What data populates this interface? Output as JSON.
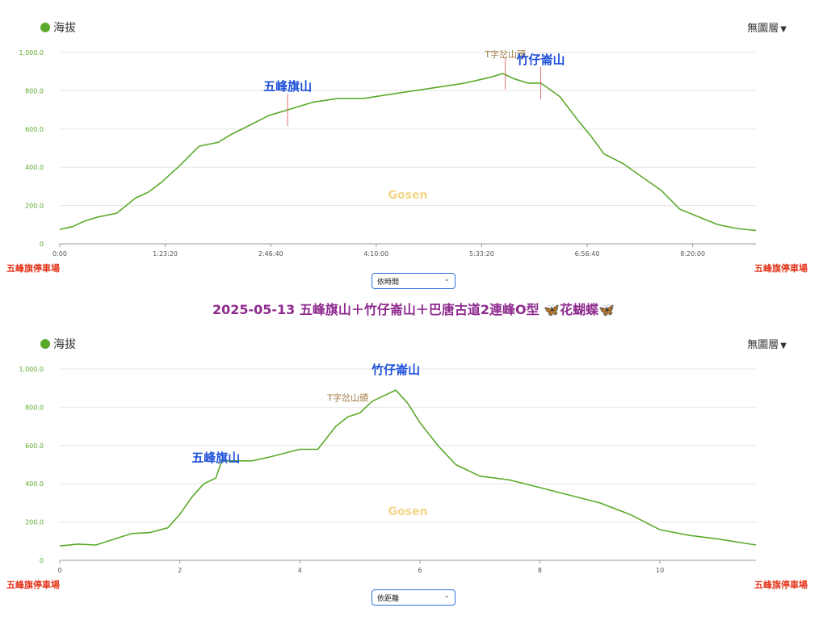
{
  "title": "2025-05-13 五峰旗山＋竹仔崙山＋巴唐古道2連峰O型 🦋花蝴蝶🦋",
  "colors": {
    "line": "#5aaa2a",
    "tick": "#5aaa2a",
    "peak": "#1e4fd8",
    "label_brown": "#a07840",
    "endpoint": "#e4341b",
    "watermark": "#f4d58a",
    "grid": "#e6e6e6",
    "axis": "#999999",
    "title": "#8e2a8e",
    "marker": "#e07070"
  },
  "panels": [
    {
      "legend": {
        "label": "海拔",
        "color": "#5aaa2a",
        "icon": "green-dot"
      },
      "layer_button": "無圖層",
      "start_label": "五峰旗停車場",
      "end_label": "五峰旗停車場",
      "select_value": "依時間",
      "watermark": "Gosen"
    },
    {
      "legend": {
        "label": "海拔",
        "color": "#5aaa2a",
        "icon": "green-dot"
      },
      "layer_button": "無圖層",
      "start_label": "五峰旗停車場",
      "end_label": "五峰旗停車場",
      "select_value": "依距離",
      "watermark": "Gosen"
    }
  ],
  "chart_data": [
    {
      "type": "area",
      "x_type": "time",
      "xlim": [
        "0:00",
        "9:10:00"
      ],
      "ylim": [
        0,
        1000
      ],
      "grid": true,
      "y_ticks": [
        "0",
        "200.0",
        "400.0",
        "600.0",
        "800.0",
        "1,000.0"
      ],
      "x_ticks": [
        "0:00",
        "1:23:20",
        "2:46:40",
        "4:10:00",
        "5:33:20",
        "6:56:40",
        "8:20:00"
      ],
      "series": [
        {
          "x": [
            "0:00",
            "0:10:00",
            "0:20:00",
            "0:30:00",
            "0:45:00",
            "1:00:00",
            "1:10:00",
            "1:20:00",
            "1:35:00",
            "1:50:00",
            "2:05:00",
            "2:15:00",
            "2:30:00",
            "2:45:00",
            "3:00:00",
            "3:20:00",
            "3:40:00",
            "4:00:00",
            "4:20:00",
            "4:40:00",
            "5:00:00",
            "5:20:00",
            "5:40:00",
            "5:50:00",
            "6:00:00",
            "6:10:00",
            "6:20:00",
            "6:35:00",
            "6:50:00",
            "7:00:00",
            "7:10:00",
            "7:25:00",
            "7:40:00",
            "7:55:00",
            "8:10:00",
            "8:25:00",
            "8:40:00",
            "8:55:00",
            "9:10:00"
          ],
          "y": [
            75,
            90,
            120,
            140,
            160,
            240,
            270,
            320,
            410,
            510,
            530,
            570,
            620,
            670,
            700,
            740,
            760,
            760,
            780,
            800,
            820,
            840,
            870,
            890,
            860,
            840,
            840,
            770,
            640,
            560,
            470,
            420,
            350,
            280,
            180,
            140,
            100,
            80,
            70
          ]
        }
      ],
      "annotations": [
        {
          "text": "五峰旗山",
          "x": "3:00:00",
          "kind": "peak"
        },
        {
          "text": "T字岔山頭",
          "x": "5:52:00",
          "kind": "junction"
        },
        {
          "text": "竹仔崙山",
          "x": "6:20:00",
          "kind": "peak"
        }
      ]
    },
    {
      "type": "area",
      "x_type": "distance",
      "xlim": [
        0,
        11.6
      ],
      "ylim": [
        0,
        1000
      ],
      "grid": true,
      "y_ticks": [
        "0",
        "200.0",
        "400.0",
        "600.0",
        "800.0",
        "1,000.0"
      ],
      "x_ticks": [
        "0",
        "2",
        "4",
        "6",
        "8",
        "10"
      ],
      "series": [
        {
          "x": [
            0,
            0.3,
            0.6,
            0.9,
            1.2,
            1.5,
            1.8,
            2.0,
            2.2,
            2.4,
            2.6,
            2.7,
            2.8,
            3.0,
            3.2,
            3.5,
            4.0,
            4.3,
            4.6,
            4.8,
            5.0,
            5.2,
            5.4,
            5.6,
            5.8,
            6.0,
            6.3,
            6.6,
            7.0,
            7.5,
            8.0,
            8.5,
            9.0,
            9.5,
            10.0,
            10.5,
            11.0,
            11.6
          ],
          "y": [
            75,
            85,
            80,
            110,
            140,
            145,
            170,
            240,
            330,
            400,
            430,
            520,
            520,
            520,
            520,
            540,
            580,
            580,
            700,
            750,
            770,
            830,
            860,
            890,
            820,
            720,
            600,
            500,
            440,
            420,
            380,
            340,
            300,
            240,
            160,
            130,
            110,
            80
          ]
        }
      ],
      "annotations": [
        {
          "text": "五峰旗山",
          "x": 2.6,
          "kind": "peak"
        },
        {
          "text": "T字岔山頭",
          "x": 4.8,
          "kind": "junction"
        },
        {
          "text": "竹仔崙山",
          "x": 5.6,
          "kind": "peak"
        }
      ]
    }
  ]
}
